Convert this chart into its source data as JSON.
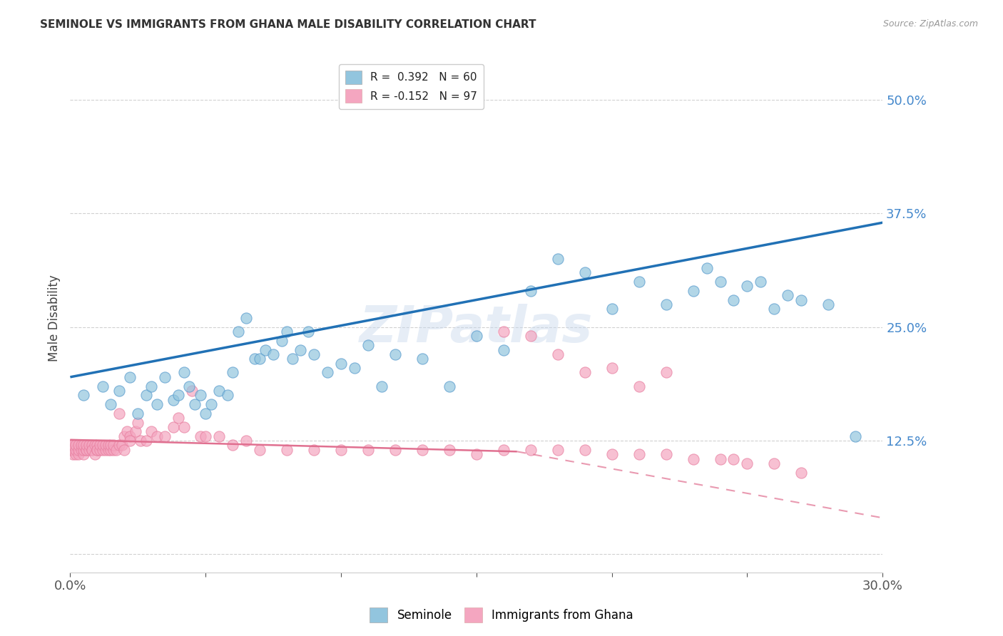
{
  "title": "SEMINOLE VS IMMIGRANTS FROM GHANA MALE DISABILITY CORRELATION CHART",
  "source": "Source: ZipAtlas.com",
  "ylabel": "Male Disability",
  "xlim": [
    0.0,
    0.3
  ],
  "ylim": [
    -0.02,
    0.54
  ],
  "x_ticks": [
    0.0,
    0.05,
    0.1,
    0.15,
    0.2,
    0.25,
    0.3
  ],
  "y_ticks": [
    0.0,
    0.125,
    0.25,
    0.375,
    0.5
  ],
  "y_tick_labels": [
    "",
    "12.5%",
    "25.0%",
    "37.5%",
    "50.0%"
  ],
  "legend_r1_text": "R =  0.392   N = 60",
  "legend_r2_text": "R = -0.152   N = 97",
  "seminole_color": "#92c5de",
  "ghana_color": "#f4a6c0",
  "trendline_seminole_color": "#2171b5",
  "trendline_ghana_color": "#e07090",
  "watermark": "ZIPatlas",
  "seminole_N": 60,
  "ghana_N": 97,
  "seminole_x": [
    0.005,
    0.012,
    0.015,
    0.018,
    0.022,
    0.025,
    0.028,
    0.03,
    0.032,
    0.035,
    0.038,
    0.04,
    0.042,
    0.044,
    0.046,
    0.048,
    0.05,
    0.052,
    0.055,
    0.058,
    0.06,
    0.062,
    0.065,
    0.068,
    0.07,
    0.072,
    0.075,
    0.078,
    0.08,
    0.082,
    0.085,
    0.088,
    0.09,
    0.095,
    0.1,
    0.105,
    0.11,
    0.115,
    0.12,
    0.13,
    0.14,
    0.15,
    0.16,
    0.17,
    0.18,
    0.19,
    0.2,
    0.21,
    0.22,
    0.23,
    0.235,
    0.24,
    0.245,
    0.25,
    0.255,
    0.26,
    0.265,
    0.27,
    0.28,
    0.29
  ],
  "seminole_y": [
    0.175,
    0.185,
    0.165,
    0.18,
    0.195,
    0.155,
    0.175,
    0.185,
    0.165,
    0.195,
    0.17,
    0.175,
    0.2,
    0.185,
    0.165,
    0.175,
    0.155,
    0.165,
    0.18,
    0.175,
    0.2,
    0.245,
    0.26,
    0.215,
    0.215,
    0.225,
    0.22,
    0.235,
    0.245,
    0.215,
    0.225,
    0.245,
    0.22,
    0.2,
    0.21,
    0.205,
    0.23,
    0.185,
    0.22,
    0.215,
    0.185,
    0.24,
    0.225,
    0.29,
    0.325,
    0.31,
    0.27,
    0.3,
    0.275,
    0.29,
    0.315,
    0.3,
    0.28,
    0.295,
    0.3,
    0.27,
    0.285,
    0.28,
    0.275,
    0.13
  ],
  "ghana_x": [
    0.0,
    0.0,
    0.0,
    0.0,
    0.001,
    0.001,
    0.001,
    0.002,
    0.002,
    0.002,
    0.003,
    0.003,
    0.003,
    0.004,
    0.004,
    0.005,
    0.005,
    0.005,
    0.006,
    0.006,
    0.006,
    0.007,
    0.007,
    0.008,
    0.008,
    0.008,
    0.009,
    0.009,
    0.01,
    0.01,
    0.01,
    0.011,
    0.011,
    0.012,
    0.012,
    0.013,
    0.013,
    0.014,
    0.014,
    0.015,
    0.015,
    0.016,
    0.016,
    0.017,
    0.018,
    0.018,
    0.019,
    0.02,
    0.02,
    0.021,
    0.022,
    0.022,
    0.024,
    0.025,
    0.026,
    0.028,
    0.03,
    0.032,
    0.035,
    0.038,
    0.04,
    0.042,
    0.045,
    0.048,
    0.05,
    0.055,
    0.06,
    0.065,
    0.07,
    0.08,
    0.09,
    0.1,
    0.11,
    0.12,
    0.13,
    0.14,
    0.15,
    0.16,
    0.17,
    0.18,
    0.19,
    0.2,
    0.21,
    0.22,
    0.23,
    0.24,
    0.245,
    0.25,
    0.26,
    0.27,
    0.16,
    0.17,
    0.18,
    0.19,
    0.2,
    0.21,
    0.22
  ],
  "ghana_y": [
    0.115,
    0.115,
    0.12,
    0.12,
    0.11,
    0.115,
    0.12,
    0.11,
    0.115,
    0.12,
    0.11,
    0.115,
    0.12,
    0.115,
    0.12,
    0.11,
    0.115,
    0.12,
    0.115,
    0.115,
    0.12,
    0.115,
    0.12,
    0.115,
    0.12,
    0.115,
    0.11,
    0.12,
    0.115,
    0.12,
    0.115,
    0.115,
    0.12,
    0.115,
    0.12,
    0.115,
    0.12,
    0.115,
    0.12,
    0.115,
    0.12,
    0.115,
    0.12,
    0.115,
    0.12,
    0.155,
    0.12,
    0.13,
    0.115,
    0.135,
    0.13,
    0.125,
    0.135,
    0.145,
    0.125,
    0.125,
    0.135,
    0.13,
    0.13,
    0.14,
    0.15,
    0.14,
    0.18,
    0.13,
    0.13,
    0.13,
    0.12,
    0.125,
    0.115,
    0.115,
    0.115,
    0.115,
    0.115,
    0.115,
    0.115,
    0.115,
    0.11,
    0.115,
    0.115,
    0.115,
    0.115,
    0.11,
    0.11,
    0.11,
    0.105,
    0.105,
    0.105,
    0.1,
    0.1,
    0.09,
    0.245,
    0.24,
    0.22,
    0.2,
    0.205,
    0.185,
    0.2
  ],
  "trendline_seminole_x0": 0.0,
  "trendline_seminole_y0": 0.195,
  "trendline_seminole_x1": 0.3,
  "trendline_seminole_y1": 0.365,
  "trendline_ghana_solid_x0": 0.0,
  "trendline_ghana_solid_y0": 0.126,
  "trendline_ghana_solid_x1": 0.165,
  "trendline_ghana_solid_y1": 0.113,
  "trendline_ghana_dashed_x0": 0.165,
  "trendline_ghana_dashed_y0": 0.113,
  "trendline_ghana_dashed_x1": 0.3,
  "trendline_ghana_dashed_y1": 0.04
}
